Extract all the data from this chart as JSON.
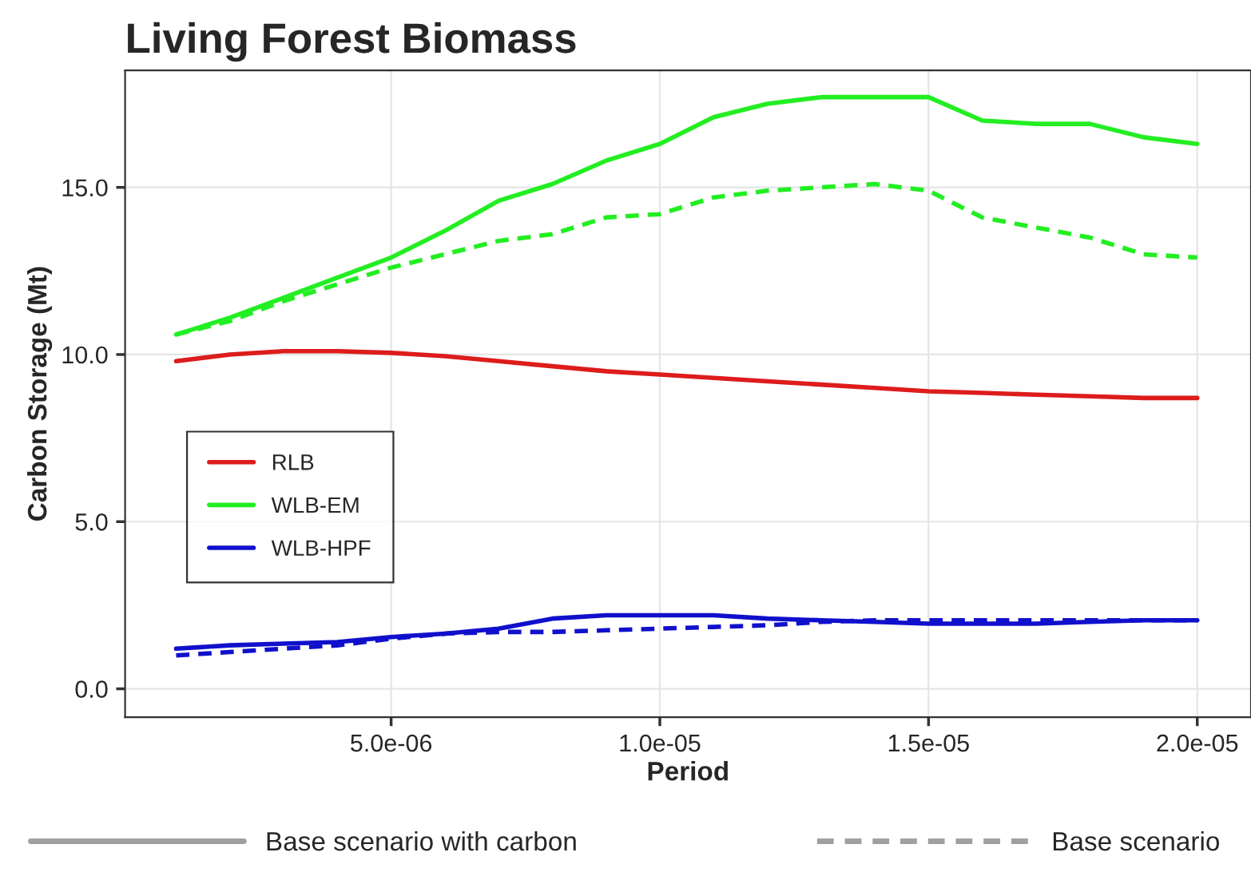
{
  "chart_data": {
    "type": "line",
    "title": "Living Forest Biomass",
    "xlabel": "Period",
    "ylabel": "Carbon Storage (Mt)",
    "x": [
      1e-06,
      2e-06,
      3e-06,
      4e-06,
      5e-06,
      6e-06,
      7e-06,
      8e-06,
      9e-06,
      1e-05,
      1.1e-05,
      1.2e-05,
      1.3e-05,
      1.4e-05,
      1.5e-05,
      1.6e-05,
      1.7e-05,
      1.8e-05,
      1.9e-05,
      2e-05
    ],
    "series": [
      {
        "name": "RLB",
        "color": "#dd1c1c",
        "line_style": "solid",
        "values": [
          9.8,
          10.0,
          10.1,
          10.1,
          10.05,
          9.95,
          9.8,
          9.65,
          9.5,
          9.4,
          9.3,
          9.2,
          9.1,
          9.0,
          8.9,
          8.85,
          8.8,
          8.75,
          8.7,
          8.7
        ]
      },
      {
        "name": "WLB-EM",
        "color": "#22ee22",
        "line_style": "solid",
        "values": [
          10.6,
          11.1,
          11.7,
          12.3,
          12.9,
          13.7,
          14.6,
          15.1,
          15.8,
          16.3,
          17.1,
          17.5,
          17.7,
          17.7,
          17.7,
          17.0,
          16.9,
          16.9,
          16.5,
          16.3
        ]
      },
      {
        "color": "#22ee22",
        "line_style": "dashed",
        "values": [
          10.6,
          11.0,
          11.6,
          12.1,
          12.6,
          13.0,
          13.4,
          13.6,
          14.1,
          14.2,
          14.7,
          14.9,
          15.0,
          15.1,
          14.9,
          14.1,
          13.8,
          13.5,
          13.0,
          12.9
        ]
      },
      {
        "name": "WLB-HPF",
        "color": "#1010cc",
        "line_style": "solid",
        "values": [
          1.2,
          1.3,
          1.35,
          1.4,
          1.55,
          1.65,
          1.8,
          2.1,
          2.2,
          2.2,
          2.2,
          2.1,
          2.05,
          2.0,
          1.95,
          1.95,
          1.95,
          2.0,
          2.05,
          2.05
        ]
      },
      {
        "color": "#1010cc",
        "line_style": "dashed",
        "values": [
          1.0,
          1.1,
          1.2,
          1.3,
          1.5,
          1.65,
          1.7,
          1.7,
          1.75,
          1.8,
          1.85,
          1.9,
          2.0,
          2.05,
          2.05,
          2.05,
          2.05,
          2.05,
          2.05,
          2.05
        ]
      }
    ],
    "xlim": [
      5e-08,
      2.1e-05
    ],
    "ylim": [
      -0.85,
      18.5
    ],
    "xticks": [
      {
        "value": 5e-06,
        "label": "5.0e-06"
      },
      {
        "value": 1e-05,
        "label": "1.0e-05"
      },
      {
        "value": 1.5e-05,
        "label": "1.5e-05"
      },
      {
        "value": 2e-05,
        "label": "2.0e-05"
      }
    ],
    "yticks": [
      {
        "value": 0,
        "label": "0.0"
      },
      {
        "value": 5,
        "label": "5.0"
      },
      {
        "value": 10,
        "label": "10.0"
      },
      {
        "value": 15,
        "label": "15.0"
      }
    ],
    "grid": true,
    "legend": "center left",
    "annotations": [
      "Base scenario with carbon",
      "Base scenario"
    ]
  }
}
